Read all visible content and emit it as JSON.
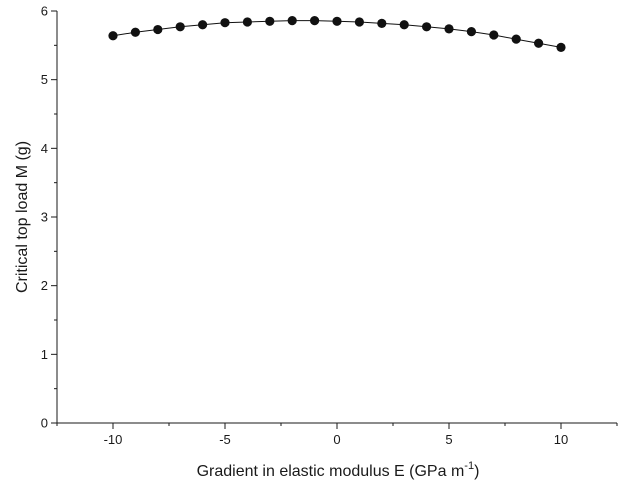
{
  "chart_data": {
    "type": "line",
    "title": "",
    "xlabel": "Gradient in elastic modulus E  (GPa m",
    "xlabel_sup": "-1",
    "xlabel_tail": ")",
    "ylabel": "Critical top load M  (g)",
    "xlim": [
      -12.5,
      12.5
    ],
    "ylim": [
      0,
      6
    ],
    "x_ticks": [
      -10,
      -5,
      0,
      5,
      10
    ],
    "x_tick_labels": [
      "-10",
      "-5",
      "0",
      "5",
      "10"
    ],
    "y_ticks": [
      0,
      1,
      2,
      3,
      4,
      5,
      6
    ],
    "y_tick_labels": [
      "0",
      "1",
      "2",
      "3",
      "4",
      "5",
      "6"
    ],
    "grid": false,
    "series": [
      {
        "marker": "filled-circle",
        "color": "#111111",
        "x": [
          -10,
          -9,
          -8,
          -7,
          -6,
          -5,
          -4,
          -3,
          -2,
          -1,
          0,
          1,
          2,
          3,
          4,
          5,
          6,
          7,
          8,
          9,
          10
        ],
        "y": [
          5.64,
          5.69,
          5.73,
          5.77,
          5.8,
          5.83,
          5.84,
          5.85,
          5.86,
          5.86,
          5.85,
          5.84,
          5.82,
          5.8,
          5.77,
          5.74,
          5.7,
          5.65,
          5.59,
          5.53,
          5.47
        ]
      }
    ]
  }
}
